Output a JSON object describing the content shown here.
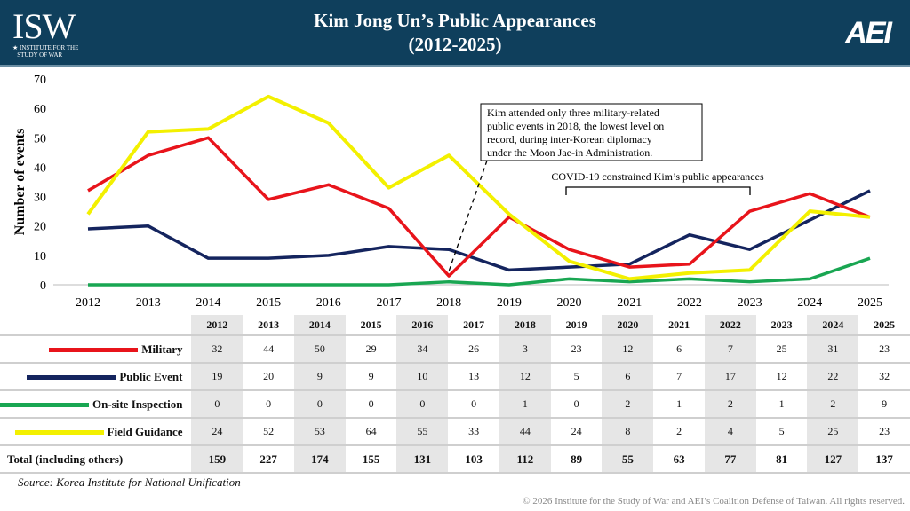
{
  "header": {
    "title_line1": "Kim Jong Un’s Public Appearances",
    "title_line2": "(2012-2025)",
    "left_logo": "ISW",
    "left_logo_sub1": "INSTITUTE FOR THE",
    "left_logo_sub2": "STUDY OF WAR",
    "right_logo": "AEI",
    "background": "#0f3f5c"
  },
  "chart_data": {
    "type": "line",
    "title": "Kim Jong Un’s Public Appearances (2012-2025)",
    "ylabel": "Number of events",
    "xlabel": "",
    "ylim": [
      0,
      70
    ],
    "yticks": [
      0,
      10,
      20,
      30,
      40,
      50,
      60,
      70
    ],
    "x": [
      "2012",
      "2013",
      "2014",
      "2015",
      "2016",
      "2017",
      "2018",
      "2019",
      "2020",
      "2021",
      "2022",
      "2023",
      "2024",
      "2025"
    ],
    "series": [
      {
        "name": "Military",
        "color": "#e8141b",
        "values": [
          32,
          44,
          50,
          29,
          34,
          26,
          3,
          23,
          12,
          6,
          7,
          25,
          31,
          23
        ]
      },
      {
        "name": "Public Event",
        "color": "#14245e",
        "values": [
          19,
          20,
          9,
          9,
          10,
          13,
          12,
          5,
          6,
          7,
          17,
          12,
          22,
          32
        ]
      },
      {
        "name": "On-site Inspection",
        "color": "#19a652",
        "values": [
          0,
          0,
          0,
          0,
          0,
          0,
          1,
          0,
          2,
          1,
          2,
          1,
          2,
          9
        ]
      },
      {
        "name": "Field Guidance",
        "color": "#f3f000",
        "values": [
          24,
          52,
          53,
          64,
          55,
          33,
          44,
          24,
          8,
          2,
          4,
          5,
          25,
          23
        ]
      }
    ],
    "totals": {
      "label": "Total (including others)",
      "values": [
        159,
        227,
        174,
        155,
        131,
        103,
        112,
        89,
        55,
        63,
        77,
        81,
        127,
        137
      ]
    },
    "annotations": [
      {
        "text": [
          "Kim attended only three military-related",
          "public events in 2018, the lowest level on",
          "record, during inter-Korean diplomacy",
          "under the Moon Jae-in  Administration."
        ],
        "points_to": "2018"
      },
      {
        "text": [
          "COVID-19 constrained Kim’s public appearances"
        ],
        "from": "2020",
        "to": "2023"
      }
    ],
    "grid": false,
    "legend": "table-left"
  },
  "source": "Source: Korea Institute for National Unification",
  "copyright": "© 2026 Institute for the Study of War and AEI’s Coalition Defense of Taiwan. All rights reserved."
}
